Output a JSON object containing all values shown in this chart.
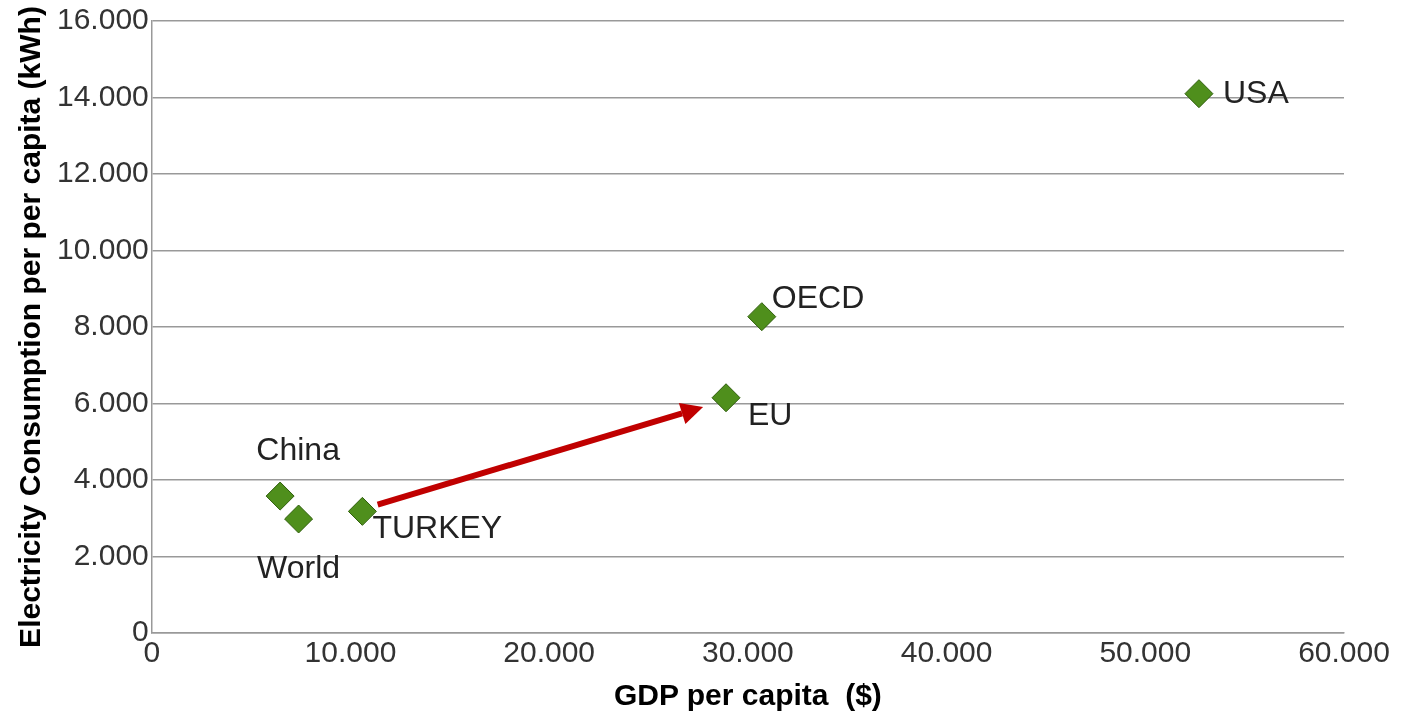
{
  "chart_data": {
    "type": "scatter",
    "xlabel": "GDP per capita  ($)",
    "ylabel": "Electricity Consumption per per capita (kWh)",
    "x": [
      52700,
      30700,
      28900,
      6460,
      7390,
      10600
    ],
    "values": [
      14100,
      8270,
      6150,
      3580,
      2980,
      3180
    ],
    "color": "#4f8f1c",
    "marker": "diamond",
    "grid": "y",
    "legend": false,
    "xlim": [
      0,
      60000
    ],
    "xticks": [
      0,
      {
        "value": 10000,
        "label": "10.000"
      },
      {
        "value": 20000,
        "label": "20.000"
      },
      {
        "value": 30000,
        "label": "30.000"
      },
      {
        "value": 40000,
        "label": "40.000"
      },
      {
        "value": 50000,
        "label": "50.000"
      },
      {
        "value": 60000,
        "label": "60.000"
      }
    ],
    "ylim": [
      0,
      16000
    ],
    "yticks": [
      0,
      {
        "value": 2000,
        "label": "2.000"
      },
      {
        "value": 4000,
        "label": "4.000"
      },
      {
        "value": 6000,
        "label": "6.000"
      },
      {
        "value": 8000,
        "label": "8.000"
      },
      {
        "value": 10000,
        "label": "10.000"
      },
      {
        "value": 12000,
        "label": "12.000"
      },
      {
        "value": 14000,
        "label": "14.000"
      },
      {
        "value": 16000,
        "label": "16.000"
      }
    ],
    "annotations": [
      {
        "text": "USA",
        "x": 52700,
        "y": 14100
      },
      {
        "text": "OECD",
        "x": 30700,
        "y": 8270
      },
      {
        "text": "EU",
        "x": 28900,
        "y": 6150
      },
      {
        "text": "China",
        "x": 6460,
        "y": 3580
      },
      {
        "text": "World",
        "x": 7390,
        "y": 2980
      },
      {
        "text": "TURKEY",
        "x": 10600,
        "y": 3180
      }
    ]
  }
}
